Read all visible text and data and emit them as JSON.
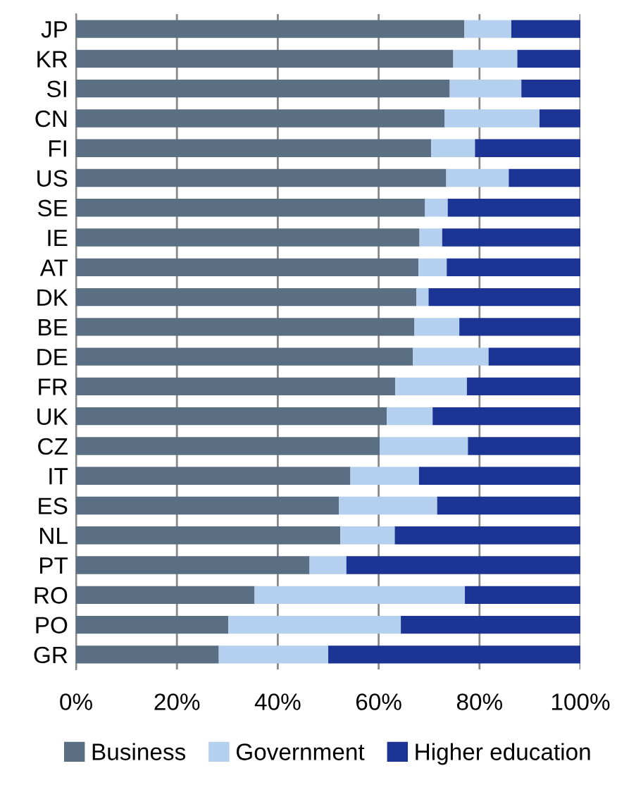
{
  "chart_data": {
    "type": "bar",
    "orientation": "horizontal",
    "stacked": true,
    "categories": [
      "JP",
      "KR",
      "SI",
      "CN",
      "FI",
      "US",
      "SE",
      "IE",
      "AT",
      "DK",
      "BE",
      "DE",
      "FR",
      "UK",
      "CZ",
      "IT",
      "ES",
      "NL",
      "PT",
      "RO",
      "PO",
      "GR"
    ],
    "series": [
      {
        "name": "Business",
        "color": "#5b6f84",
        "values": [
          77.0,
          74.8,
          74.1,
          73.1,
          70.4,
          73.4,
          69.2,
          68.1,
          67.9,
          67.5,
          67.1,
          66.8,
          63.3,
          61.6,
          60.2,
          54.4,
          52.1,
          52.4,
          46.3,
          35.4,
          30.2,
          28.3
        ]
      },
      {
        "name": "Government",
        "color": "#b4d0ee",
        "values": [
          9.3,
          12.7,
          14.2,
          18.8,
          8.7,
          12.4,
          4.5,
          4.5,
          5.6,
          2.4,
          8.9,
          15.0,
          14.2,
          9.1,
          17.5,
          13.6,
          19.5,
          10.8,
          7.3,
          41.7,
          34.2,
          21.7
        ]
      },
      {
        "name": "Higher education",
        "color": "#1c3494",
        "values": [
          13.7,
          12.5,
          11.7,
          8.1,
          20.9,
          14.2,
          26.3,
          27.4,
          26.5,
          30.1,
          24.0,
          18.2,
          22.5,
          29.3,
          22.3,
          32.0,
          28.4,
          36.8,
          46.4,
          22.9,
          35.6,
          50.0
        ]
      }
    ],
    "xlim": [
      0,
      100
    ],
    "xticks": [
      {
        "value": 0,
        "label": "0%"
      },
      {
        "value": 20,
        "label": "20%"
      },
      {
        "value": 40,
        "label": "40%"
      },
      {
        "value": 60,
        "label": "60%"
      },
      {
        "value": 80,
        "label": "80%"
      },
      {
        "value": 100,
        "label": "100%"
      }
    ],
    "grid": "x",
    "legend": "bottom"
  }
}
